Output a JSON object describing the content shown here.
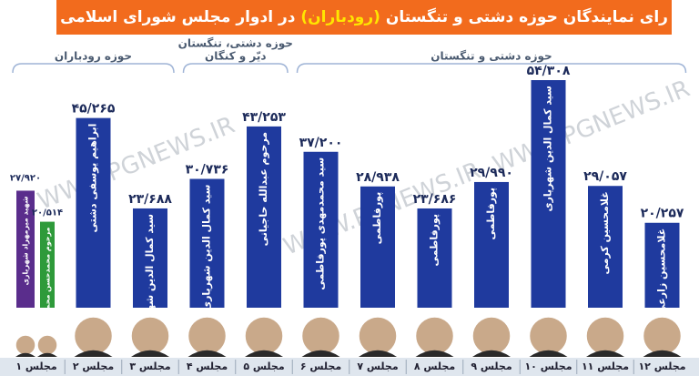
{
  "chart_data": {
    "type": "bar",
    "title_parts": [
      "رای نمایندگان حوزه دشتی و تنگستان",
      "(رودباران)",
      "در ادوار مجلس شورای اسلامی"
    ],
    "watermark": "WWW.PGNEWS.IR",
    "groups": [
      {
        "label_lines": [
          "حوزه رودباران"
        ],
        "categories": [
          {
            "label": "مجلس ۱",
            "bars": [
              {
                "name": "شهید میرمهراد شهریاری",
                "value": 27920,
                "value_label": "۲۷/۹۲۰",
                "color": "#5a2d8c"
              },
              {
                "name": "مرحوم محمدحسن محمدی",
                "value": 20514,
                "value_label": "۲۰/۵۱۴",
                "color": "#2e9a3a"
              }
            ]
          },
          {
            "label": "مجلس ۲",
            "bars": [
              {
                "name": "ابراهیم یوسفی دشتی",
                "value": 45265,
                "value_label": "۴۵/۲۶۵",
                "color": "#1f3a9e"
              }
            ]
          },
          {
            "label": "مجلس ۳",
            "bars": [
              {
                "name": "سید کمال الدین شهریاری",
                "value": 23688,
                "value_label": "۲۳/۶۸۸",
                "color": "#1f3a9e"
              }
            ]
          }
        ]
      },
      {
        "label_lines": [
          "حوزه دشتی، تنگستان",
          "دیّر و کنگان"
        ],
        "categories": [
          {
            "label": "مجلس ۴",
            "bars": [
              {
                "name": "سید کمال الدین شهریاری",
                "value": 30736,
                "value_label": "۳۰/۷۳۶",
                "color": "#1f3a9e"
              }
            ]
          },
          {
            "label": "مجلس ۵",
            "bars": [
              {
                "name": "مرحوم عبدالله حاجیانی",
                "value": 43253,
                "value_label": "۴۳/۲۵۳",
                "color": "#1f3a9e"
              }
            ]
          }
        ]
      },
      {
        "label_lines": [
          "حوزه دشتی و تنگستان"
        ],
        "categories": [
          {
            "label": "مجلس ۶",
            "bars": [
              {
                "name": "سید محمدمهدی پورفاطمی",
                "value": 37200,
                "value_label": "۳۷/۲۰۰",
                "color": "#1f3a9e"
              }
            ]
          },
          {
            "label": "مجلس ۷",
            "bars": [
              {
                "name": "پورفاطمی",
                "value": 28938,
                "value_label": "۲۸/۹۳۸",
                "color": "#1f3a9e"
              }
            ]
          },
          {
            "label": "مجلس ۸",
            "bars": [
              {
                "name": "پورفاطمی",
                "value": 23686,
                "value_label": "۲۳/۶۸۶",
                "color": "#1f3a9e"
              }
            ]
          },
          {
            "label": "مجلس ۹",
            "bars": [
              {
                "name": "پورفاطمی",
                "value": 29990,
                "value_label": "۲۹/۹۹۰",
                "color": "#1f3a9e"
              }
            ]
          },
          {
            "label": "مجلس ۱۰",
            "bars": [
              {
                "name": "سید کمال الدین شهریاری",
                "value": 54308,
                "value_label": "۵۴/۳۰۸",
                "color": "#1f3a9e"
              }
            ]
          },
          {
            "label": "مجلس ۱۱",
            "bars": [
              {
                "name": "غلامحسین کرمی",
                "value": 29057,
                "value_label": "۲۹/۰۵۷",
                "color": "#1f3a9e"
              }
            ]
          },
          {
            "label": "مجلس ۱۲",
            "bars": [
              {
                "name": "غلامحسین زارعی",
                "value": 20257,
                "value_label": "۲۰/۲۵۷",
                "color": "#1f3a9e"
              }
            ]
          }
        ]
      }
    ]
  }
}
